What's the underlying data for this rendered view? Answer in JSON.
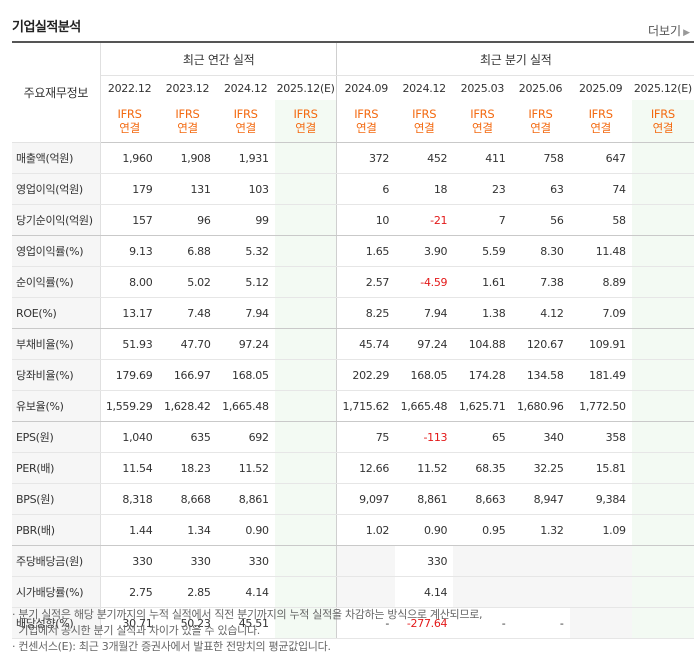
{
  "title": "기업실적분석",
  "more_label": "더보기",
  "headers": {
    "label": "주요재무정보",
    "annual": "최근 연간 실적",
    "quarterly": "최근 분기 실적",
    "annual_periods": [
      "2022.12",
      "2023.12",
      "2024.12",
      "2025.12(E)"
    ],
    "quarterly_periods": [
      "2024.09",
      "2024.12",
      "2025.03",
      "2025.06",
      "2025.09",
      "2025.12(E)"
    ],
    "basis_line1": "IFRS",
    "basis_line2": "연결"
  },
  "rows": [
    {
      "label": "매출액(억원)",
      "annual": [
        "1,960",
        "1,908",
        "1,931",
        ""
      ],
      "quarterly": [
        "372",
        "452",
        "411",
        "758",
        "647",
        ""
      ]
    },
    {
      "label": "영업이익(억원)",
      "annual": [
        "179",
        "131",
        "103",
        ""
      ],
      "quarterly": [
        "6",
        "18",
        "23",
        "63",
        "74",
        ""
      ]
    },
    {
      "label": "당기순이익(억원)",
      "annual": [
        "157",
        "96",
        "99",
        ""
      ],
      "quarterly": [
        "10",
        "-21",
        "7",
        "56",
        "58",
        ""
      ]
    },
    {
      "label": "영업이익률(%)",
      "annual": [
        "9.13",
        "6.88",
        "5.32",
        ""
      ],
      "quarterly": [
        "1.65",
        "3.90",
        "5.59",
        "8.30",
        "11.48",
        ""
      ]
    },
    {
      "label": "순이익률(%)",
      "annual": [
        "8.00",
        "5.02",
        "5.12",
        ""
      ],
      "quarterly": [
        "2.57",
        "-4.59",
        "1.61",
        "7.38",
        "8.89",
        ""
      ]
    },
    {
      "label": "ROE(%)",
      "annual": [
        "13.17",
        "7.48",
        "7.94",
        ""
      ],
      "quarterly": [
        "8.25",
        "7.94",
        "1.38",
        "4.12",
        "7.09",
        ""
      ]
    },
    {
      "label": "부채비율(%)",
      "annual": [
        "51.93",
        "47.70",
        "97.24",
        ""
      ],
      "quarterly": [
        "45.74",
        "97.24",
        "104.88",
        "120.67",
        "109.91",
        ""
      ]
    },
    {
      "label": "당좌비율(%)",
      "annual": [
        "179.69",
        "166.97",
        "168.05",
        ""
      ],
      "quarterly": [
        "202.29",
        "168.05",
        "174.28",
        "134.58",
        "181.49",
        ""
      ]
    },
    {
      "label": "유보율(%)",
      "annual": [
        "1,559.29",
        "1,628.42",
        "1,665.48",
        ""
      ],
      "quarterly": [
        "1,715.62",
        "1,665.48",
        "1,625.71",
        "1,680.96",
        "1,772.50",
        ""
      ]
    },
    {
      "label": "EPS(원)",
      "annual": [
        "1,040",
        "635",
        "692",
        ""
      ],
      "quarterly": [
        "75",
        "-113",
        "65",
        "340",
        "358",
        ""
      ]
    },
    {
      "label": "PER(배)",
      "annual": [
        "11.54",
        "18.23",
        "11.52",
        ""
      ],
      "quarterly": [
        "12.66",
        "11.52",
        "68.35",
        "32.25",
        "15.81",
        ""
      ]
    },
    {
      "label": "BPS(원)",
      "annual": [
        "8,318",
        "8,668",
        "8,861",
        ""
      ],
      "quarterly": [
        "9,097",
        "8,861",
        "8,663",
        "8,947",
        "9,384",
        ""
      ]
    },
    {
      "label": "PBR(배)",
      "annual": [
        "1.44",
        "1.34",
        "0.90",
        ""
      ],
      "quarterly": [
        "1.02",
        "0.90",
        "0.95",
        "1.32",
        "1.09",
        ""
      ]
    },
    {
      "label": "주당배당금(원)",
      "annual": [
        "330",
        "330",
        "330",
        ""
      ],
      "quarterly": [
        "",
        "330",
        "",
        "",
        "",
        ""
      ]
    },
    {
      "label": "시가배당률(%)",
      "annual": [
        "2.75",
        "2.85",
        "4.14",
        ""
      ],
      "quarterly": [
        "",
        "4.14",
        "",
        "",
        "",
        ""
      ]
    },
    {
      "label": "배당성향(%)",
      "annual": [
        "30.71",
        "50.23",
        "45.51",
        ""
      ],
      "quarterly": [
        "-",
        "-277.64",
        "-",
        "-",
        "",
        ""
      ]
    }
  ],
  "notes": [
    "· 분기 실적은 해당 분기까지의 누적 실적에서 직전 분기까지의 누적 실적을 차감하는 방식으로 계산되므로,",
    "  기업에서 공시한 분기 실적과 차이가 있을 수 있습니다.",
    "· 컨센서스(E): 최근 3개월간 증권사에서 발표한 전망치의 평균값입니다."
  ],
  "colors": {
    "basis": "#f36a11",
    "negative": "#e31919",
    "estimate_bg": "#f3faf3"
  }
}
